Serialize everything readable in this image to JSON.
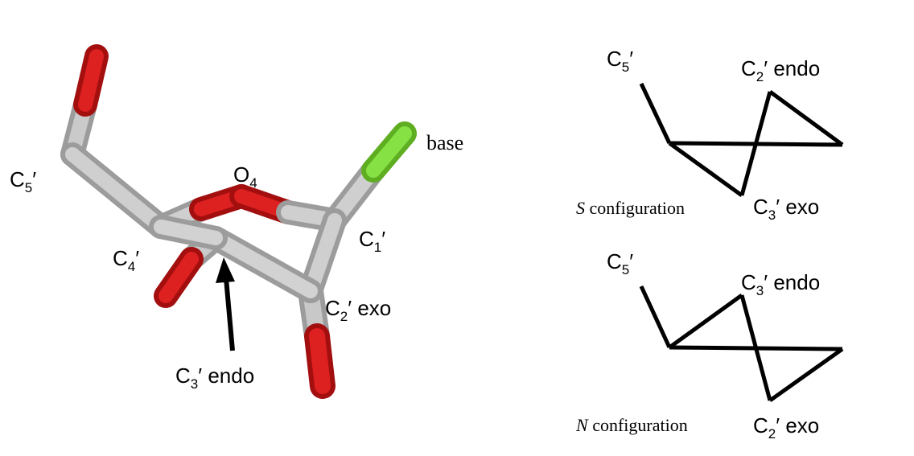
{
  "colors": {
    "bond": "#bdbdbd",
    "bond_shadow": "#8e8e8e",
    "oxygen": "#d81a1a",
    "oxygen_dark": "#9a0d0d",
    "base_atom": "#7fdc3c",
    "line": "#000000",
    "background": "#ffffff"
  },
  "molecule": {
    "labels": {
      "c5": {
        "main": "C",
        "sub": "5",
        "suffix": "′"
      },
      "o4": {
        "main": "O",
        "sub": "4",
        "suffix": ""
      },
      "c4": {
        "main": "C",
        "sub": "4",
        "suffix": "′"
      },
      "c1": {
        "main": "C",
        "sub": "1",
        "suffix": "′"
      },
      "c2": {
        "main": "C",
        "sub": "2",
        "suffix": "′ exo"
      },
      "c3": {
        "main": "C",
        "sub": "3",
        "suffix": "′ endo"
      },
      "base": {
        "text": "base"
      }
    }
  },
  "diagrams": {
    "s": {
      "config_italic": "S",
      "config_text": " configuration",
      "c5": {
        "main": "C",
        "sub": "5",
        "suffix": "′"
      },
      "up": {
        "main": "C",
        "sub": "2",
        "suffix": "′ endo"
      },
      "down": {
        "main": "C",
        "sub": "3",
        "suffix": "′ exo"
      }
    },
    "n": {
      "config_italic": "N",
      "config_text": " configuration",
      "c5": {
        "main": "C",
        "sub": "5",
        "suffix": "′"
      },
      "up": {
        "main": "C",
        "sub": "3",
        "suffix": "′ endo"
      },
      "down": {
        "main": "C",
        "sub": "2",
        "suffix": "′ exo"
      }
    }
  }
}
